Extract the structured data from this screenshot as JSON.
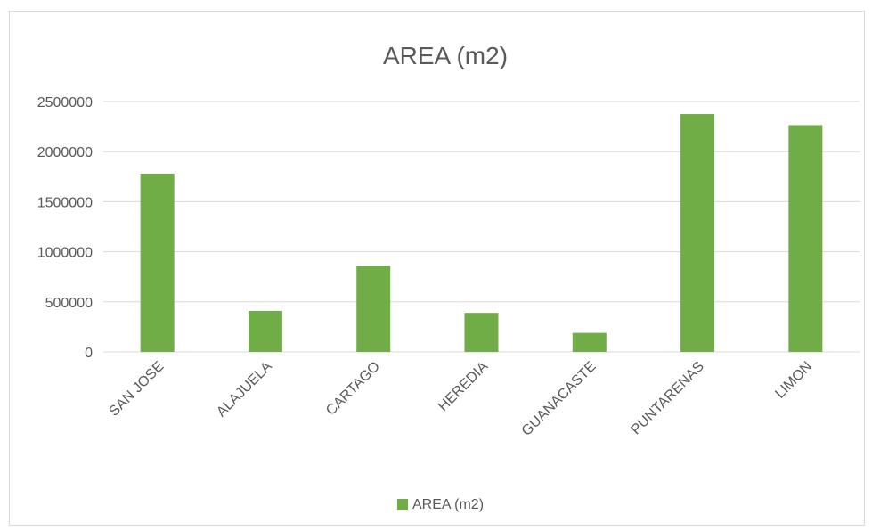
{
  "chart_data": {
    "type": "bar",
    "title": "AREA (m2)",
    "categories": [
      "SAN JOSE",
      "ALAJUELA",
      "CARTAGO",
      "HEREDIA",
      "GUANACASTE",
      "PUNTARENAS",
      "LIMON"
    ],
    "series": [
      {
        "name": "AREA (m2)",
        "values": [
          1780000,
          410000,
          860000,
          390000,
          190000,
          2375000,
          2265000
        ],
        "color": "#70ad47"
      }
    ],
    "xlabel": "",
    "ylabel": "",
    "ylim": [
      0,
      2500000
    ],
    "yticks": [
      "0",
      "500000",
      "1000000",
      "1500000",
      "2000000",
      "2500000"
    ],
    "grid": true,
    "legend": "bottom"
  }
}
